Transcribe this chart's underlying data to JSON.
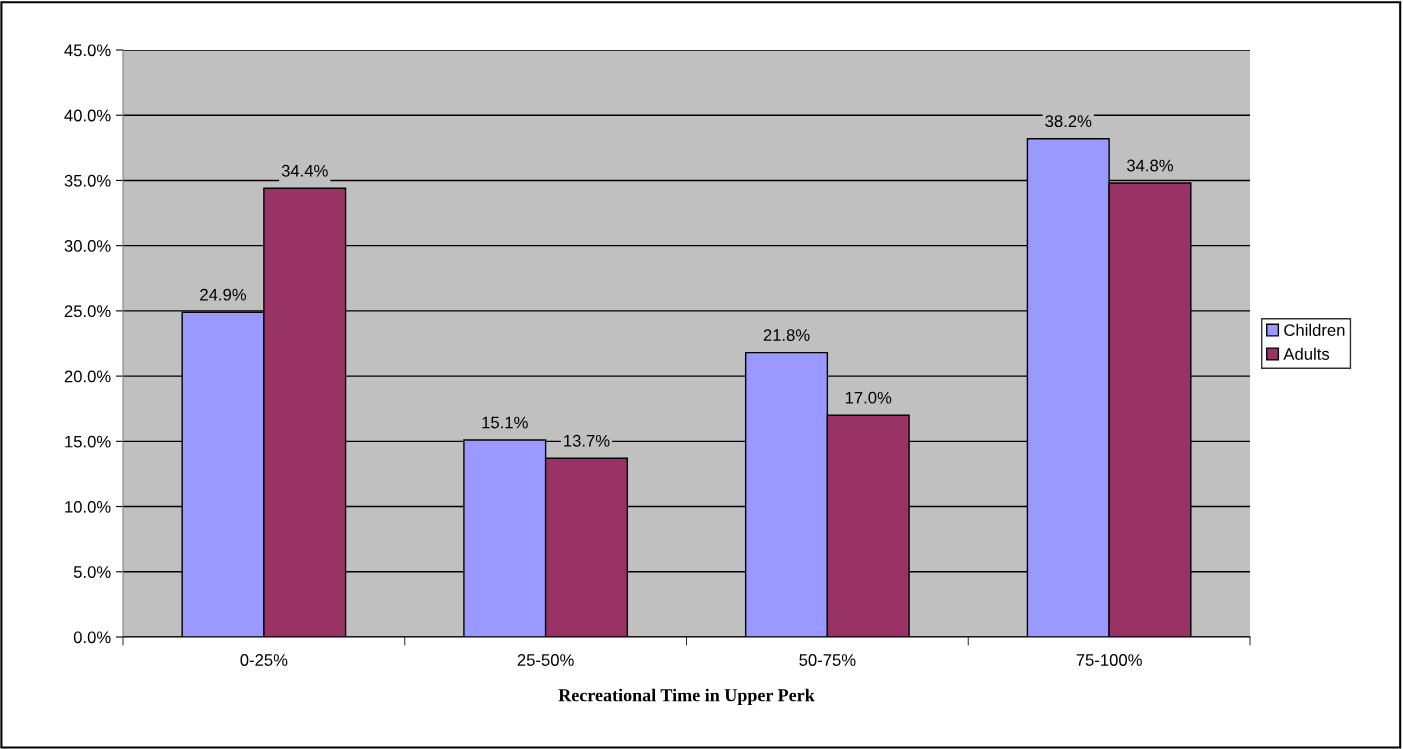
{
  "chart_data": {
    "type": "bar",
    "xlabel": "Recreational Time in Upper Perk",
    "categories": [
      "0-25%",
      "25-50%",
      "50-75%",
      "75-100%"
    ],
    "series": [
      {
        "name": "Children",
        "color": "#9999ff",
        "values": [
          24.9,
          15.1,
          21.8,
          38.2
        ],
        "value_labels": [
          "24.9%",
          "15.1%",
          "21.8%",
          "38.2%"
        ]
      },
      {
        "name": "Adults",
        "color": "#993366",
        "values": [
          34.4,
          13.7,
          17.0,
          34.8
        ],
        "value_labels": [
          "34.4%",
          "13.7%",
          "17.0%",
          "34.8%"
        ]
      }
    ],
    "ylim": [
      0,
      45
    ],
    "yticks": [
      {
        "value": 0,
        "label": "0.0%"
      },
      {
        "value": 5,
        "label": "5.0%"
      },
      {
        "value": 10,
        "label": "10.0%"
      },
      {
        "value": 15,
        "label": "15.0%"
      },
      {
        "value": 20,
        "label": "20.0%"
      },
      {
        "value": 25,
        "label": "25.0%"
      },
      {
        "value": 30,
        "label": "30.0%"
      },
      {
        "value": 35,
        "label": "35.0%"
      },
      {
        "value": 40,
        "label": "40.0%"
      },
      {
        "value": 45,
        "label": "45.0%"
      }
    ],
    "grid": "y",
    "legend": "right"
  }
}
